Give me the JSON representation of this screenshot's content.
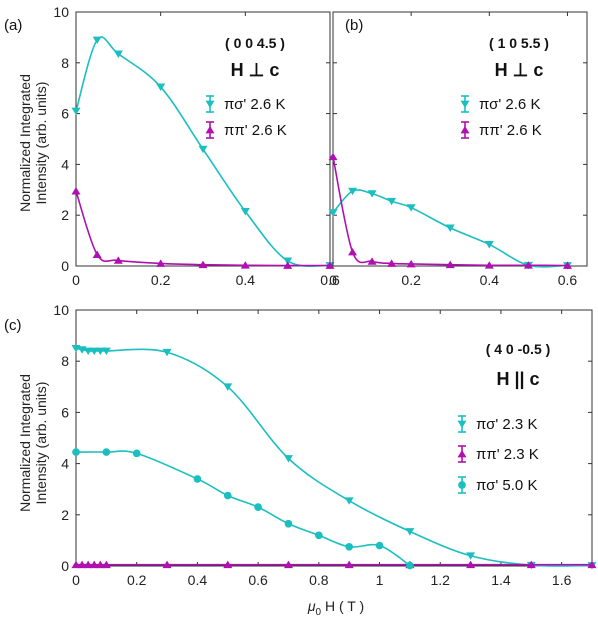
{
  "figure": {
    "ylabel_line1": "Normalized Integrated",
    "ylabel_line2": "Intensity (arb. units)",
    "xlabel_main": "μ",
    "xlabel_sub": "0",
    "xlabel_rest": " H ( T )"
  },
  "chart_data": [
    {
      "type": "line",
      "panel_label": "(a)",
      "reflection": "( 0 0 4.5 )",
      "field_text": "H ⊥ c",
      "xlim": [
        0,
        0.6
      ],
      "ylim": [
        0,
        10
      ],
      "xticks": [
        0,
        0.2,
        0.4,
        0.6
      ],
      "yticks": [
        0,
        2,
        4,
        6,
        8,
        10
      ],
      "xtick_labels": [
        "0",
        "0.2",
        "0.4",
        "0.6"
      ],
      "ytick_labels": [
        "0",
        "2",
        "4",
        "6",
        "8",
        "10"
      ],
      "series": [
        {
          "name": "πσ' 2.6 K",
          "color": "#1BBFBF",
          "marker": "triangle-down",
          "x": [
            0,
            0.05,
            0.1,
            0.2,
            0.3,
            0.4,
            0.5,
            0.6
          ],
          "y": [
            6.1,
            8.9,
            8.35,
            7.05,
            4.6,
            2.15,
            0.2,
            0.02
          ]
        },
        {
          "name": "ππ' 2.6 K",
          "color": "#B010B0",
          "marker": "triangle-up",
          "x": [
            0,
            0.05,
            0.1,
            0.2,
            0.3,
            0.4,
            0.5,
            0.6
          ],
          "y": [
            2.95,
            0.45,
            0.22,
            0.1,
            0.05,
            0.03,
            0.02,
            0.02
          ]
        }
      ]
    },
    {
      "type": "line",
      "panel_label": "(b)",
      "reflection": "( 1 0 5.5 )",
      "field_text": "H ⊥ c",
      "xlim": [
        0,
        0.65
      ],
      "ylim": [
        0,
        10
      ],
      "xticks": [
        0,
        0.2,
        0.4,
        0.6
      ],
      "yticks": [
        0,
        2,
        4,
        6,
        8,
        10
      ],
      "xtick_labels": [
        "0",
        "0.2",
        "0.4",
        "0.6"
      ],
      "ytick_labels": [],
      "series": [
        {
          "name": "πσ' 2.6 K",
          "color": "#1BBFBF",
          "marker": "triangle-down",
          "x": [
            0,
            0.05,
            0.1,
            0.15,
            0.2,
            0.3,
            0.4,
            0.5,
            0.6
          ],
          "y": [
            2.1,
            2.95,
            2.85,
            2.55,
            2.3,
            1.5,
            0.85,
            0.03,
            0.02
          ]
        },
        {
          "name": "ππ' 2.6 K",
          "color": "#B010B0",
          "marker": "triangle-up",
          "x": [
            0,
            0.05,
            0.1,
            0.15,
            0.2,
            0.3,
            0.4,
            0.5,
            0.6
          ],
          "y": [
            4.3,
            0.55,
            0.18,
            0.1,
            0.08,
            0.05,
            0.03,
            0.03,
            0.02
          ]
        }
      ]
    },
    {
      "type": "line",
      "panel_label": "(c)",
      "reflection": "( 4 0 -0.5 )",
      "field_text": "H || c",
      "xlim": [
        0,
        1.7
      ],
      "ylim": [
        0,
        10
      ],
      "xticks": [
        0,
        0.2,
        0.4,
        0.6,
        0.8,
        1.0,
        1.2,
        1.4,
        1.6
      ],
      "yticks": [
        0,
        2,
        4,
        6,
        8,
        10
      ],
      "xtick_labels": [
        "0",
        "0.2",
        "0.4",
        "0.6",
        "0.8",
        "1",
        "1.2",
        "1.4",
        "1.6"
      ],
      "ytick_labels": [
        "0",
        "2",
        "4",
        "6",
        "8",
        "10"
      ],
      "series": [
        {
          "name": "πσ' 2.3 K",
          "color": "#1BBFBF",
          "marker": "triangle-down",
          "x": [
            0,
            0.02,
            0.04,
            0.06,
            0.08,
            0.1,
            0.3,
            0.5,
            0.7,
            0.9,
            1.1,
            1.3,
            1.5,
            1.7
          ],
          "y": [
            8.5,
            8.45,
            8.4,
            8.4,
            8.4,
            8.4,
            8.35,
            7.0,
            4.2,
            2.55,
            1.35,
            0.4,
            0.03,
            0.02
          ]
        },
        {
          "name": "ππ' 2.3 K",
          "color": "#B010B0",
          "marker": "triangle-up",
          "x": [
            0,
            0.02,
            0.04,
            0.06,
            0.08,
            0.1,
            0.3,
            0.5,
            0.7,
            0.9,
            1.1,
            1.3,
            1.5,
            1.7
          ],
          "y": [
            0.05,
            0.05,
            0.05,
            0.05,
            0.05,
            0.05,
            0.05,
            0.05,
            0.05,
            0.05,
            0.05,
            0.05,
            0.05,
            0.05
          ]
        },
        {
          "name": "πσ' 5.0 K",
          "color": "#1BBFBF",
          "marker": "circle",
          "x": [
            0,
            0.1,
            0.2,
            0.4,
            0.5,
            0.6,
            0.7,
            0.8,
            0.9,
            1.0,
            1.1
          ],
          "y": [
            4.45,
            4.45,
            4.4,
            3.4,
            2.75,
            2.3,
            1.65,
            1.2,
            0.75,
            0.8,
            0.02
          ]
        }
      ]
    }
  ]
}
